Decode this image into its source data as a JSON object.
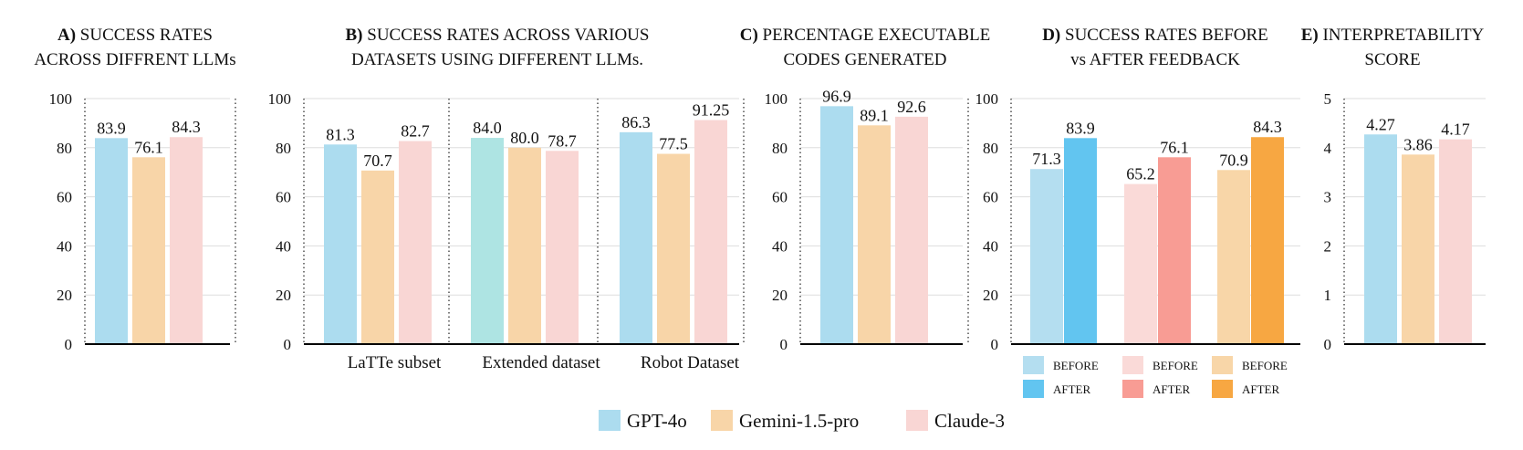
{
  "colors": {
    "gpt": "#acdcef",
    "gemini": "#f8d5a8",
    "claude": "#f9d6d4",
    "gpt_b": "#b4def0",
    "gpt_a": "#62c5f0",
    "claude_b": "#fadad8",
    "claude_a": "#f89c94",
    "gemini_b": "#f8d6a8",
    "gemini_a": "#f7a742",
    "teal": "#aee4e3",
    "axis": "#000000",
    "grid": "#dddddd"
  },
  "legend": [
    {
      "name": "GPT-4o",
      "color": "#acdcef"
    },
    {
      "name": "Gemini-1.5-pro",
      "color": "#f8d5a8"
    },
    {
      "name": "Claude-3",
      "color": "#f9d6d4"
    }
  ],
  "chart_data": [
    {
      "id": "A",
      "type": "bar",
      "title_letter": "A)",
      "title_lines": [
        "SUCCESS RATES",
        "ACROSS DIFFRENT LLMs"
      ],
      "ylim": [
        0,
        100
      ],
      "yticks": [
        "0",
        "20",
        "40",
        "60",
        "80",
        "100"
      ],
      "values": [
        83.9,
        76.1,
        84.3
      ],
      "labels": [
        "83.9",
        "76.1",
        "84.3"
      ],
      "colors": [
        "#acdcef",
        "#f8d5a8",
        "#f9d6d4"
      ]
    },
    {
      "id": "B",
      "type": "bar",
      "title_letter": "B)",
      "title_lines": [
        "SUCCESS RATES ACROSS VARIOUS",
        "DATASETS USING DIFFERENT LLMs."
      ],
      "ylim": [
        0,
        100
      ],
      "yticks": [
        "0",
        "20",
        "40",
        "60",
        "80",
        "100"
      ],
      "categories": [
        "LaTTe subset",
        "Extended dataset",
        "Robot Dataset"
      ],
      "groups": [
        {
          "values": [
            81.3,
            70.7,
            82.7
          ],
          "labels": [
            "81.3",
            "70.7",
            "82.7"
          ],
          "colors": [
            "#acdcef",
            "#f8d5a8",
            "#f9d6d4"
          ]
        },
        {
          "values": [
            84.0,
            80.0,
            78.7
          ],
          "labels": [
            "84.0",
            "80.0",
            "78.7"
          ],
          "colors": [
            "#aee4e3",
            "#f8d5a8",
            "#f9d6d4"
          ]
        },
        {
          "values": [
            86.3,
            77.5,
            91.25
          ],
          "labels": [
            "86.3",
            "77.5",
            "91.25"
          ],
          "colors": [
            "#acdcef",
            "#f8d5a8",
            "#f9d6d4"
          ]
        }
      ]
    },
    {
      "id": "C",
      "type": "bar",
      "title_letter": "C)",
      "title_lines": [
        "PERCENTAGE EXECUTABLE",
        "CODES GENERATED"
      ],
      "ylim": [
        0,
        100
      ],
      "yticks": [
        "0",
        "20",
        "40",
        "60",
        "80",
        "100"
      ],
      "values": [
        96.9,
        89.1,
        92.6
      ],
      "labels": [
        "96.9",
        "89.1",
        "92.6"
      ],
      "colors": [
        "#acdcef",
        "#f8d5a8",
        "#f9d6d4"
      ]
    },
    {
      "id": "D",
      "type": "bar",
      "title_letter": "D)",
      "title_lines": [
        "SUCCESS RATES BEFORE",
        "vs AFTER FEEDBACK"
      ],
      "ylim": [
        0,
        100
      ],
      "yticks": [
        "0",
        "20",
        "40",
        "60",
        "80",
        "100"
      ],
      "groups": [
        {
          "values": [
            71.3,
            83.9
          ],
          "labels": [
            "71.3",
            "83.9"
          ],
          "colors": [
            "#b4def0",
            "#62c5f0"
          ]
        },
        {
          "values": [
            65.2,
            76.1
          ],
          "labels": [
            "65.2",
            "76.1"
          ],
          "colors": [
            "#fadad8",
            "#f89c94"
          ]
        },
        {
          "values": [
            70.9,
            84.3
          ],
          "labels": [
            "70.9",
            "84.3"
          ],
          "colors": [
            "#f8d6a8",
            "#f7a742"
          ]
        }
      ],
      "legend": [
        [
          {
            "name": "BEFORE",
            "color": "#b4def0"
          },
          {
            "name": "AFTER",
            "color": "#62c5f0"
          }
        ],
        [
          {
            "name": "BEFORE",
            "color": "#fadad8"
          },
          {
            "name": "AFTER",
            "color": "#f89c94"
          }
        ],
        [
          {
            "name": "BEFORE",
            "color": "#f8d6a8"
          },
          {
            "name": "AFTER",
            "color": "#f7a742"
          }
        ]
      ]
    },
    {
      "id": "E",
      "type": "bar",
      "title_letter": "E)",
      "title_lines": [
        "INTERPRETABILITY",
        "SCORE"
      ],
      "ylim": [
        0,
        5
      ],
      "yticks": [
        "0",
        "1",
        "2",
        "3",
        "4",
        "5"
      ],
      "values": [
        4.27,
        3.86,
        4.17
      ],
      "labels": [
        "4.27",
        "3.86",
        "4.17"
      ],
      "colors": [
        "#acdcef",
        "#f8d5a8",
        "#f9d6d4"
      ]
    }
  ]
}
